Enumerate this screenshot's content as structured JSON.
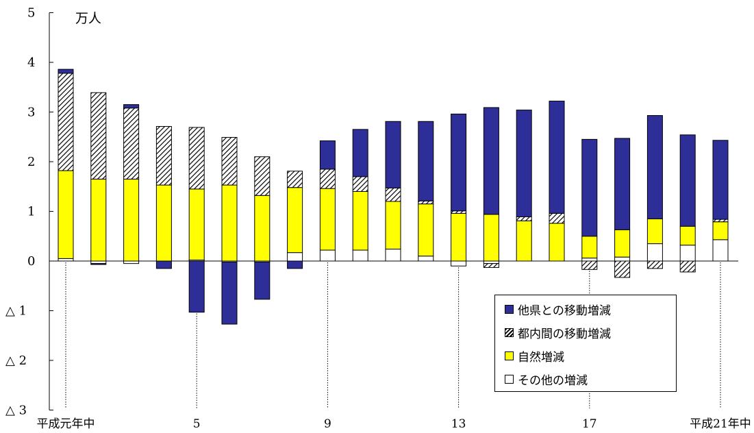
{
  "chart_data": {
    "type": "bar",
    "stacked": true,
    "unit_label": "万人",
    "ylim": [
      -3,
      5
    ],
    "y_ticks": [
      5,
      4,
      3,
      2,
      1,
      0,
      -1,
      -2,
      -3
    ],
    "y_tick_labels": [
      "5",
      "4",
      "3",
      "2",
      "1",
      "0",
      "△ 1",
      "△ 2",
      "△ 3"
    ],
    "x": [
      1,
      2,
      3,
      4,
      5,
      6,
      7,
      8,
      9,
      10,
      11,
      12,
      13,
      14,
      15,
      16,
      17,
      18,
      19,
      20,
      21
    ],
    "x_tick_labels": [
      {
        "x": 1,
        "label": "平成元年中"
      },
      {
        "x": 5,
        "label": "5"
      },
      {
        "x": 9,
        "label": "9"
      },
      {
        "x": 13,
        "label": "13"
      },
      {
        "x": 17,
        "label": "17"
      },
      {
        "x": 21,
        "label": "平成21年中"
      }
    ],
    "series": [
      {
        "name": "その他の増減",
        "color": "#ffffff",
        "pattern": "none",
        "values": [
          0.05,
          -0.05,
          -0.05,
          0,
          0.02,
          -0.02,
          -0.02,
          0.17,
          0.22,
          0.22,
          0.24,
          0.1,
          -0.1,
          -0.05,
          0,
          0,
          0.06,
          0.08,
          0.35,
          0.32,
          0.43
        ]
      },
      {
        "name": "自然増減",
        "color": "#ffff00",
        "pattern": "none",
        "values": [
          1.77,
          1.65,
          1.65,
          1.53,
          1.43,
          1.53,
          1.32,
          1.31,
          1.24,
          1.18,
          0.96,
          1.05,
          0.96,
          0.94,
          0.81,
          0.76,
          0.44,
          0.55,
          0.5,
          0.38,
          0.36
        ]
      },
      {
        "name": "都内間の移動増減",
        "color": "#ffffff",
        "pattern": "hatch",
        "values": [
          1.96,
          1.74,
          1.43,
          1.18,
          1.24,
          0.96,
          0.78,
          0.33,
          0.39,
          0.3,
          0.27,
          0.06,
          0.05,
          -0.08,
          0.08,
          0.2,
          -0.17,
          -0.33,
          -0.15,
          -0.22,
          0.05
        ]
      },
      {
        "name": "他県との移動増減",
        "color": "#2e2e99",
        "pattern": "none",
        "values": [
          0.08,
          -0.02,
          0.07,
          -0.15,
          -1.03,
          -1.25,
          -0.75,
          -0.15,
          0.57,
          0.95,
          1.34,
          1.6,
          1.95,
          2.15,
          2.15,
          2.26,
          1.95,
          1.84,
          2.08,
          1.84,
          1.59
        ]
      }
    ],
    "legend_position": "bottom-right",
    "dotted_markers_at": [
      1,
      5,
      9,
      13,
      17,
      21
    ]
  }
}
